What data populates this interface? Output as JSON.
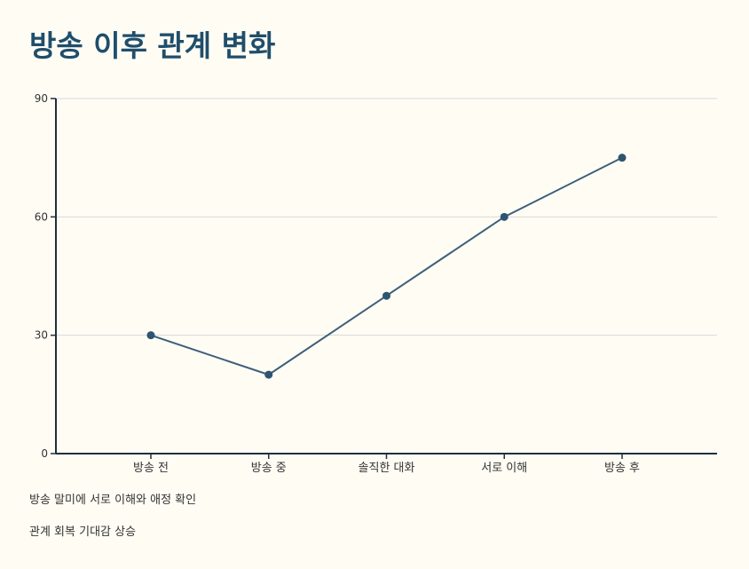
{
  "title": "방송 이후 관계 변화",
  "notes": [
    "방송 말미에 서로 이해와 애정 확인",
    "관계 회복 기대감 상승"
  ],
  "colors": {
    "background": "#fffcf4",
    "title": "#1f4e6b",
    "line": "#3c5f7a",
    "point": "#2e5470",
    "axis": "#1f2f3f",
    "grid": "#d9d9d9",
    "text": "#333333"
  },
  "chart_data": {
    "type": "line",
    "categories": [
      "방송 전",
      "방송 중",
      "솔직한 대화",
      "서로 이해",
      "방송 후"
    ],
    "series": [
      {
        "values": [
          30,
          20,
          40,
          60,
          75
        ]
      }
    ],
    "ylim": [
      0,
      90
    ],
    "yticks": [
      0,
      30,
      60,
      90
    ],
    "grid": true,
    "legend": "none",
    "xlabel": "",
    "ylabel": ""
  }
}
